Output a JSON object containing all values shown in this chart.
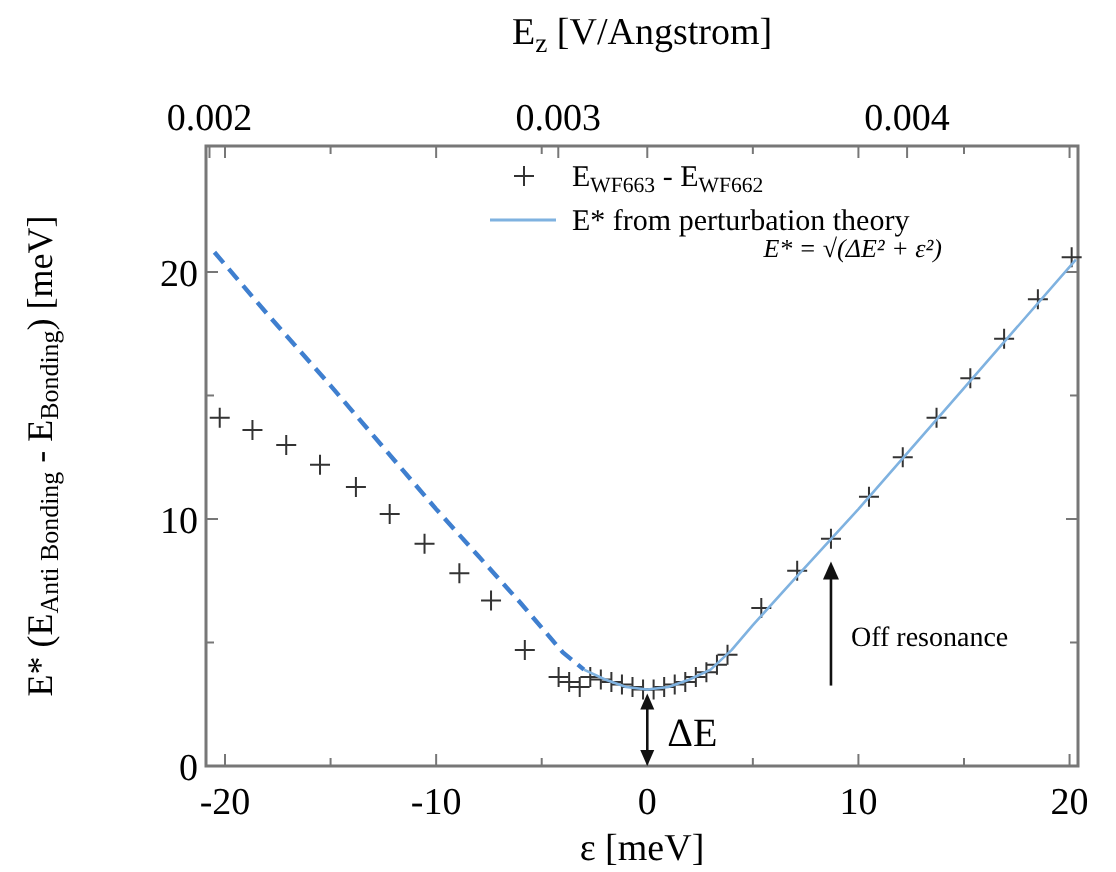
{
  "chart_data": {
    "type": "scatter",
    "xlabel": "ε  [meV]",
    "ylabel": "E* (E$_{Anti Bonding}$ - E$_{Bonding}$) [meV]",
    "x2label": "E$_{z}$ [V/Angstrom]",
    "xlim": [
      -20.9,
      20.4
    ],
    "xticks": [
      -20,
      {
        "value": -15,
        "label": null
      },
      -10,
      {
        "value": -5,
        "label": null
      },
      0,
      {
        "value": 5,
        "label": null
      },
      10,
      {
        "value": 15,
        "label": null
      },
      20
    ],
    "ylim": [
      0,
      25.1
    ],
    "yticks": [
      0,
      {
        "value": 5,
        "label": null
      },
      10,
      {
        "value": 15,
        "label": null
      },
      20
    ],
    "x2lim": [
      0.00199,
      0.00449
    ],
    "x2ticks": [
      0.002,
      0.003,
      0.004
    ],
    "grid": false,
    "legend": "top right",
    "series": [
      {
        "name": "E$_{WF663}$ - E$_{WF662}$",
        "color": "#333333",
        "marker": "cross",
        "x": [
          -20.25,
          -18.7,
          -17.1,
          -15.5,
          -13.8,
          -12.2,
          -10.55,
          -8.9,
          -7.4,
          -5.8,
          -4.2,
          -3.7,
          -3.2,
          -2.7,
          -2.2,
          -1.7,
          -1.2,
          -0.7,
          -0.2,
          0.3,
          0.8,
          1.3,
          1.8,
          2.3,
          2.8,
          3.3,
          3.8,
          5.4,
          7.1,
          8.7,
          10.5,
          12.1,
          13.7,
          15.3,
          16.9,
          18.5,
          20.1
        ],
        "values": [
          14.1,
          13.6,
          13.0,
          12.2,
          11.3,
          10.2,
          9.0,
          7.8,
          6.7,
          4.7,
          3.6,
          3.4,
          3.2,
          3.6,
          3.5,
          3.4,
          3.3,
          3.2,
          3.1,
          3.1,
          3.2,
          3.3,
          3.4,
          3.6,
          3.8,
          4.1,
          4.5,
          6.4,
          7.9,
          9.2,
          10.9,
          12.5,
          14.1,
          15.7,
          17.3,
          18.9,
          20.6
        ]
      },
      {
        "type": "line",
        "color": "#3f7fcf",
        "line_style": "dashed",
        "x": [
          -20.5,
          -18,
          -15,
          -12,
          -10,
          -8,
          -6,
          -4,
          -3
        ],
        "values": [
          20.8,
          18.3,
          15.4,
          12.4,
          10.4,
          8.5,
          6.6,
          4.6,
          3.9
        ]
      },
      {
        "type": "line",
        "name": "E* from perturbation theory",
        "color": "#7fb2e0",
        "line_style": "solid",
        "x": [
          -3,
          -2,
          -1,
          0,
          1,
          2,
          3,
          4,
          5,
          7,
          10,
          15,
          20.3
        ],
        "values": [
          3.9,
          3.5,
          3.2,
          3.1,
          3.2,
          3.5,
          3.9,
          4.7,
          5.7,
          7.6,
          10.4,
          15.3,
          20.5
        ]
      }
    ],
    "annotations": [
      "E* = √(ΔE² + ε²)",
      {
        "text": "Off resonance",
        "x": 8.7,
        "y": 8.6
      },
      {
        "text": "ΔE",
        "x": 0,
        "y": 3.1
      }
    ]
  }
}
